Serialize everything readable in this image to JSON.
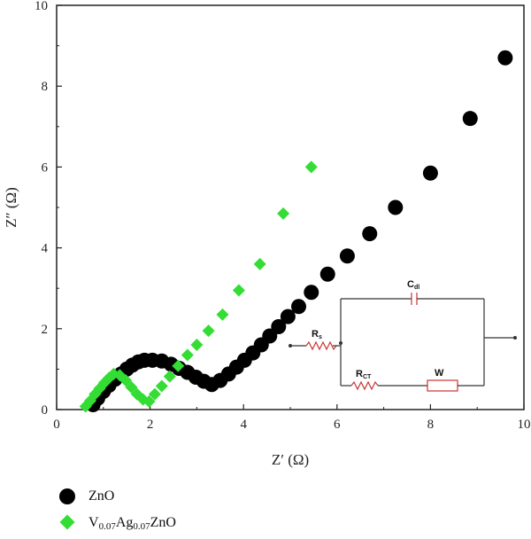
{
  "chart_data": {
    "type": "scatter",
    "xlabel": "Z′ (Ω)",
    "ylabel": "Z″ (Ω)",
    "xlim": [
      0,
      10
    ],
    "ylim": [
      0,
      10
    ],
    "xticks": [
      0,
      2,
      4,
      6,
      8,
      10
    ],
    "yticks": [
      0,
      2,
      4,
      6,
      8,
      10
    ],
    "x_tick_labels": [
      "0",
      "2",
      "4",
      "6",
      "8",
      "10"
    ],
    "y_tick_labels": [
      "0",
      "2",
      "4",
      "6",
      "8",
      "10"
    ],
    "grid": false,
    "legend_position": "bottom-left, below plot",
    "series": [
      {
        "name": "ZnO",
        "marker": "circle",
        "color": "#000000",
        "x": [
          0.78,
          0.88,
          1.0,
          1.12,
          1.25,
          1.38,
          1.5,
          1.62,
          1.75,
          1.88,
          2.05,
          2.25,
          2.45,
          2.62,
          2.8,
          2.98,
          3.15,
          3.32,
          3.5,
          3.68,
          3.85,
          4.02,
          4.2,
          4.38,
          4.56,
          4.75,
          4.95,
          5.18,
          5.45,
          5.8,
          6.22,
          6.7,
          7.25,
          8.0,
          8.85,
          9.6
        ],
        "y": [
          0.12,
          0.28,
          0.45,
          0.6,
          0.75,
          0.88,
          1.0,
          1.1,
          1.18,
          1.22,
          1.22,
          1.2,
          1.12,
          1.02,
          0.92,
          0.8,
          0.7,
          0.62,
          0.72,
          0.88,
          1.05,
          1.22,
          1.4,
          1.6,
          1.82,
          2.05,
          2.3,
          2.55,
          2.9,
          3.35,
          3.8,
          4.35,
          5.0,
          5.85,
          7.2,
          8.7
        ]
      },
      {
        "name": "V0.07Ag0.07ZnO",
        "marker": "diamond",
        "color": "#33dd33",
        "x": [
          0.62,
          0.72,
          0.82,
          0.92,
          1.02,
          1.12,
          1.22,
          1.35,
          1.48,
          1.6,
          1.72,
          1.85,
          1.98,
          2.1,
          2.25,
          2.42,
          2.6,
          2.8,
          3.0,
          3.25,
          3.55,
          3.9,
          4.35,
          4.85,
          5.45
        ],
        "y": [
          0.08,
          0.22,
          0.38,
          0.52,
          0.66,
          0.78,
          0.88,
          0.85,
          0.72,
          0.55,
          0.38,
          0.25,
          0.2,
          0.38,
          0.58,
          0.82,
          1.08,
          1.35,
          1.6,
          1.95,
          2.35,
          2.95,
          3.6,
          4.85,
          6.0
        ]
      }
    ],
    "legend": [
      {
        "name": "ZnO",
        "marker": "circle",
        "color": "#000000"
      },
      {
        "name_base": "V",
        "name_sub1": "0.07",
        "name_mid": "Ag",
        "name_sub2": "0.07",
        "name_end": "ZnO",
        "marker": "diamond",
        "color": "#33dd33"
      }
    ],
    "inset_circuit": {
      "labels": {
        "cdl": "C",
        "cdl_sub": "dl",
        "rs": "R",
        "rs_sub": "s",
        "rct": "R",
        "rct_sub": "CT",
        "w": "W"
      }
    }
  }
}
